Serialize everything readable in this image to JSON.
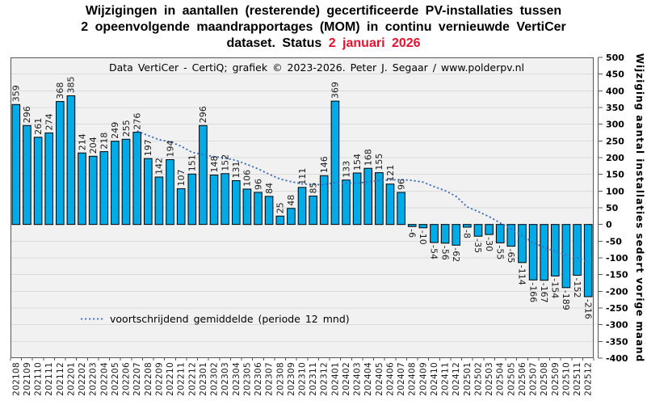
{
  "title": {
    "line1": "Wijzigingen in aantallen (resterende) gecertificeerde PV-installaties tussen",
    "line2": "2 opeenvolgende maandrapportages (MOM) in continu vernieuwde VertiCer",
    "line3_prefix": "dataset. Status ",
    "line3_highlight": "2 januari 2026"
  },
  "subtitle": "Data VertiCer - CertiQ; grafiek © 2023-2026. Peter J. Segaar / www.polderpv.nl",
  "legend": {
    "label": "voortschrijdend gemiddelde (periode 12 mnd)"
  },
  "y_axis": {
    "title": "Wijziging aantal installaties sedert vorige maand",
    "max": 500,
    "min": -400,
    "step": 50
  },
  "colors": {
    "bar_fill": "#00abe8",
    "bar_border": "#000000",
    "avg_line": "#3a6fc0",
    "status_date": "#e8112d",
    "plot_bg": "#f1f1f1",
    "gridline": "#dbdbdb",
    "axis": "#555555"
  },
  "chart_data": {
    "type": "bar",
    "title": "Wijzigingen in aantallen (resterende) gecertificeerde PV-installaties tussen 2 opeenvolgende maandrapportages (MOM) in continu vernieuwde VertiCer dataset. Status 2 januari 2026",
    "xlabel": "",
    "ylabel": "Wijziging aantal installaties sedert vorige maand",
    "ylim": [
      -400,
      500
    ],
    "ytick_step": 50,
    "grid": "horizontal",
    "legend_position": "bottom-left-inside",
    "categories": [
      "202108",
      "202109",
      "202110",
      "202111",
      "202112",
      "202201",
      "202202",
      "202203",
      "202204",
      "202205",
      "202206",
      "202207",
      "202208",
      "202209",
      "202210",
      "202211",
      "202212",
      "202301",
      "202302",
      "202303",
      "202304",
      "202305",
      "202306",
      "202307",
      "202308",
      "202309",
      "202310",
      "202311",
      "202312",
      "202401",
      "202402",
      "202403",
      "202404",
      "202405",
      "202406",
      "202407",
      "202408",
      "202409",
      "202410",
      "202411",
      "202412",
      "202501",
      "202502",
      "202503",
      "202504",
      "202505",
      "202506",
      "202507",
      "202508",
      "202509",
      "202510",
      "202511",
      "202512"
    ],
    "values": [
      359,
      296,
      261,
      274,
      368,
      385,
      214,
      204,
      218,
      249,
      255,
      276,
      197,
      142,
      194,
      107,
      151,
      296,
      148,
      152,
      131,
      106,
      96,
      84,
      25,
      48,
      111,
      85,
      146,
      369,
      133,
      154,
      168,
      155,
      121,
      96,
      -6,
      -10,
      -54,
      -56,
      -62,
      -8,
      -35,
      -30,
      -55,
      -65,
      -114,
      -166,
      -167,
      -154,
      -189,
      -152,
      -216
    ],
    "moving_avg_12m": [
      null,
      null,
      null,
      null,
      null,
      null,
      null,
      null,
      null,
      null,
      null,
      279.9,
      266.4,
      253.6,
      248.0,
      234.1,
      216.0,
      208.6,
      203.1,
      198.8,
      191.5,
      179.6,
      166.3,
      150.3,
      136.0,
      128.2,
      121.3,
      119.4,
      119.0,
      125.1,
      123.8,
      124.0,
      127.1,
      131.2,
      133.3,
      134.3,
      131.7,
      126.8,
      113.1,
      101.3,
      84.0,
      52.6,
      38.6,
      23.3,
      4.7,
      -13.7,
      -33.3,
      -55.1,
      -68.5,
      -80.5,
      -91.8,
      -99.8,
      -112.6
    ]
  }
}
